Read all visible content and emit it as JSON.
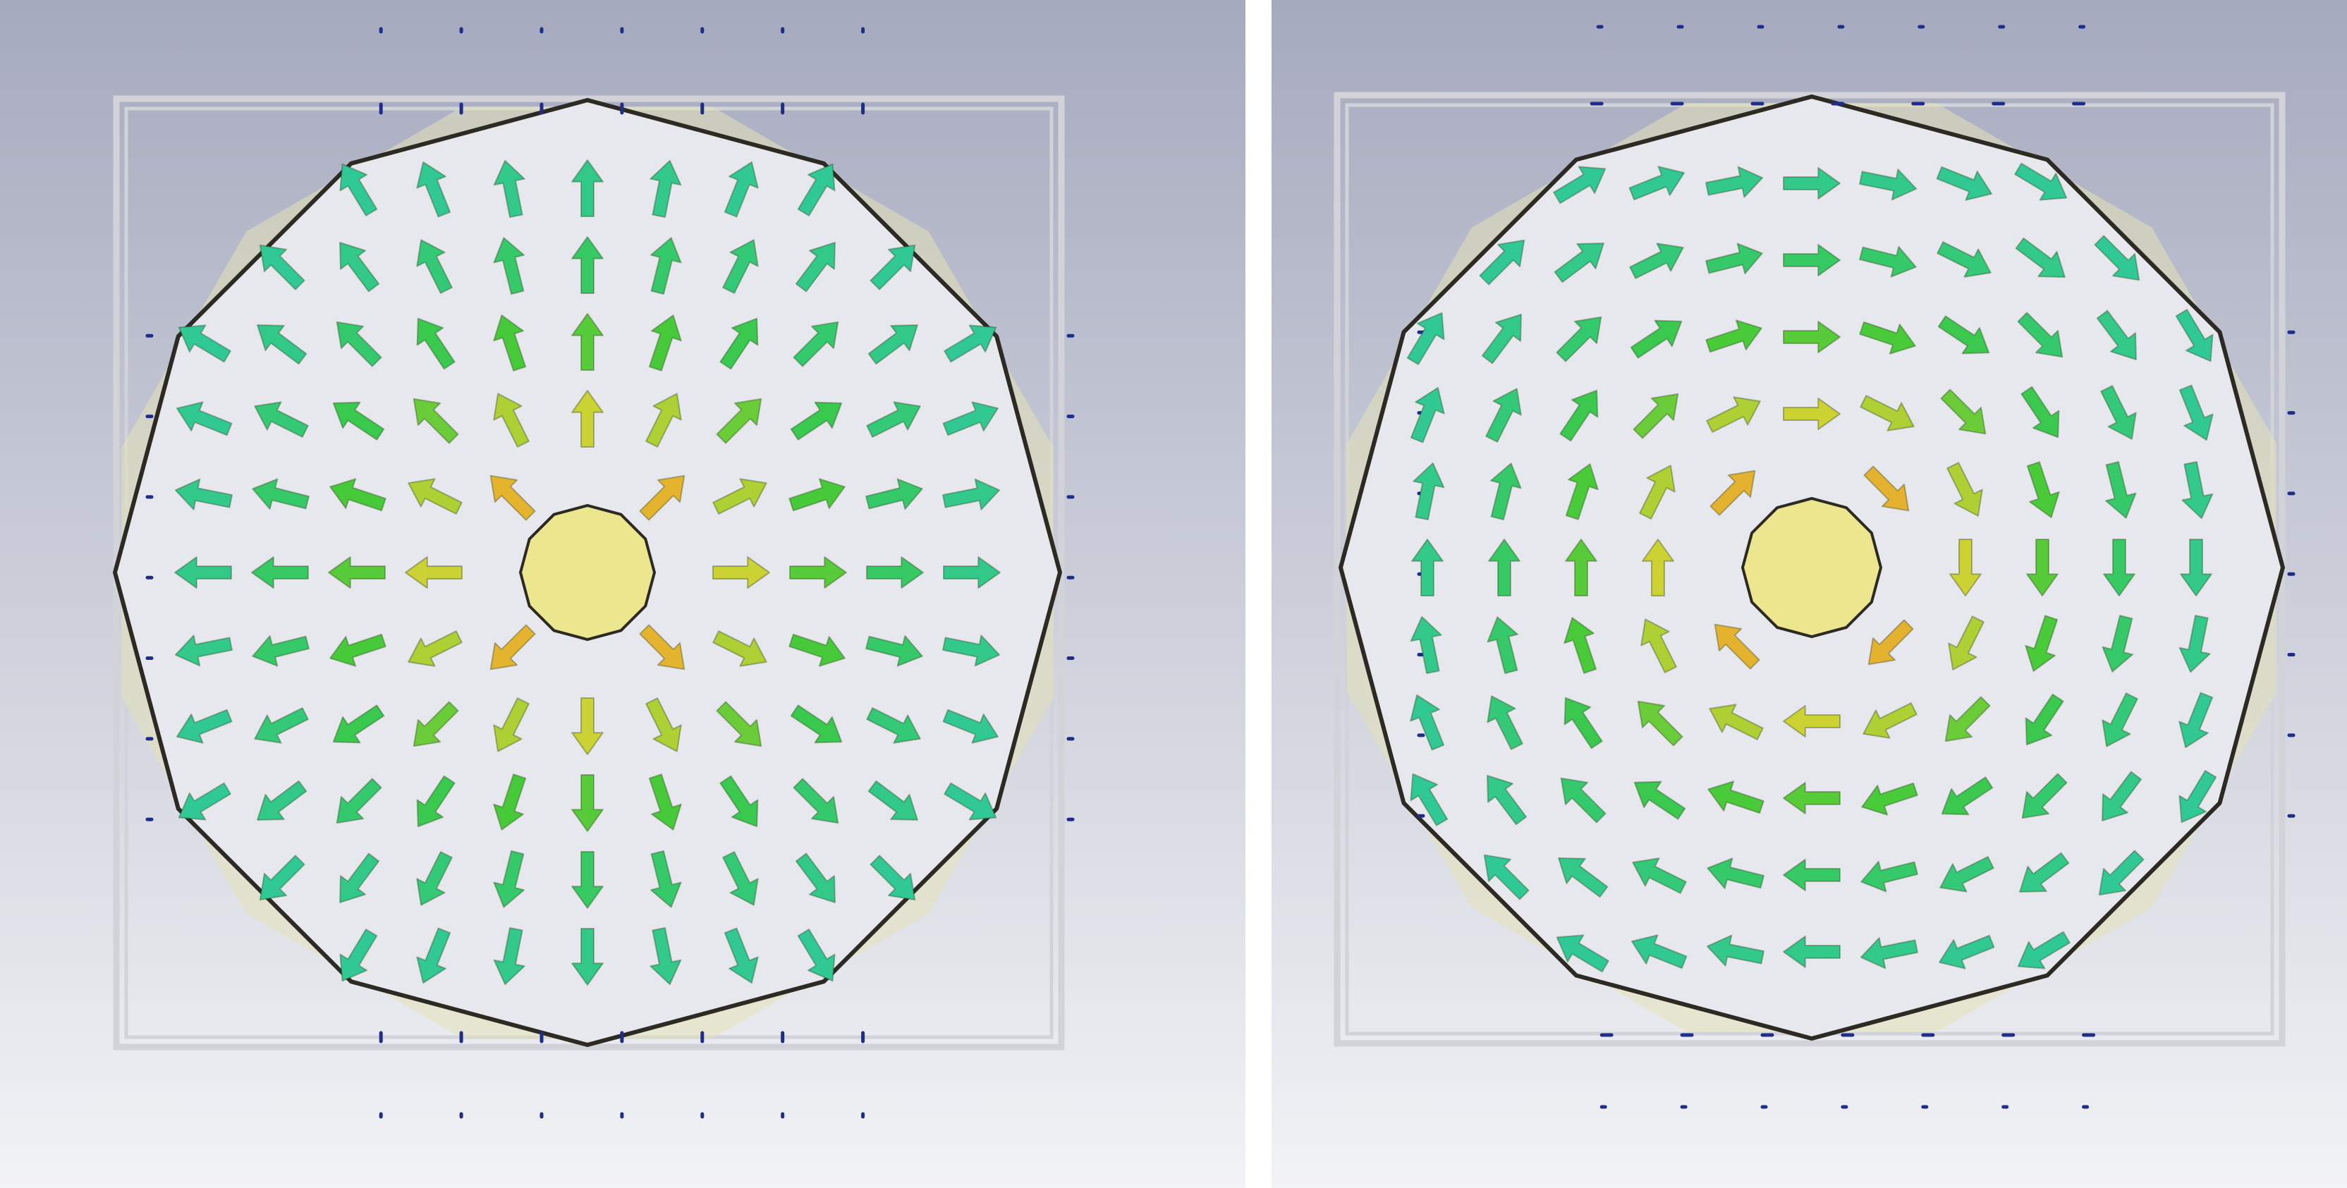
{
  "viewer": {
    "panels": [
      {
        "id": "left",
        "field_pattern": "radial",
        "field_direction": "outward"
      },
      {
        "id": "right",
        "field_pattern": "circular",
        "field_direction": "clockwise"
      }
    ],
    "colors": {
      "background_top": "#a6aabe",
      "background_bottom": "#f2f3f6",
      "domain_fill": "#e7e8ee",
      "outline": "#2c2a22",
      "frame": "#d2d3d8",
      "boundary_arrows": "#1f2d8a",
      "center_conductor": "#ece78e",
      "arrow_low": "#2ec9a8",
      "arrow_mid": "#3cc93a",
      "arrow_high": "#e8d432",
      "arrow_max": "#e0802a"
    },
    "icons": {
      "field_arrow": "arrow-icon",
      "conductor": "conductor-icon"
    }
  }
}
